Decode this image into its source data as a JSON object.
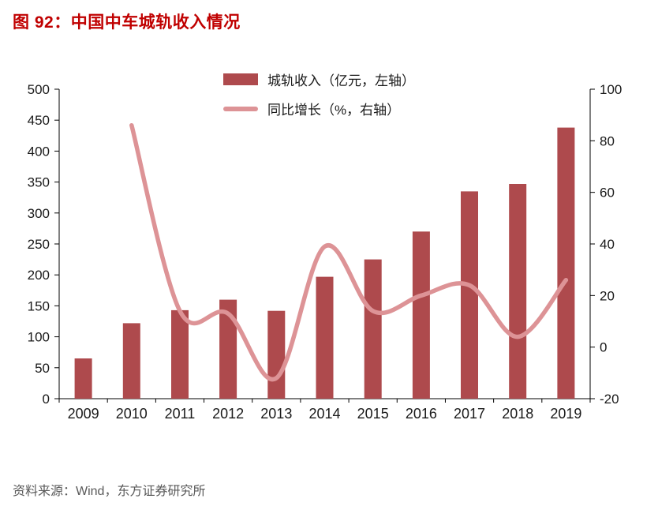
{
  "title": "图 92：中国中车城轨收入情况",
  "title_color": "#c00000",
  "source": "资料来源：Wind，东方证券研究所",
  "chart_data": {
    "type": "combo-bar-line",
    "categories": [
      "2009",
      "2010",
      "2011",
      "2012",
      "2013",
      "2014",
      "2015",
      "2016",
      "2017",
      "2018",
      "2019"
    ],
    "series": [
      {
        "name": "城轨收入（亿元，左轴）",
        "type": "bar",
        "axis": "left",
        "color": "#ae4a4d",
        "values": [
          65,
          122,
          143,
          160,
          142,
          197,
          225,
          270,
          335,
          347,
          438
        ]
      },
      {
        "name": "同比增长（%，右轴）",
        "type": "line",
        "axis": "right",
        "color": "#dd9396",
        "values": [
          null,
          86,
          14,
          13,
          -12,
          39,
          14,
          20,
          24,
          4,
          26
        ]
      }
    ],
    "left_axis": {
      "min": 0,
      "max": 500,
      "step": 50
    },
    "right_axis": {
      "min": -20,
      "max": 100,
      "step": 20
    },
    "grid": false,
    "legend_position": "top-center",
    "axis_text_color": "#1a1a1a",
    "axis_line_color": "#000000"
  }
}
